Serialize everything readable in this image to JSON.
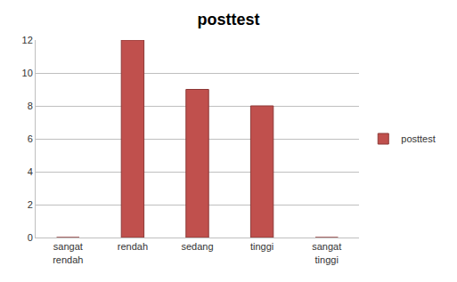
{
  "chart_data": {
    "type": "bar",
    "title": "posttest",
    "categories": [
      "sangat rendah",
      "rendah",
      "sedang",
      "tinggi",
      "sangat tinggi"
    ],
    "series": [
      {
        "name": "posttest",
        "color": "#c0504d",
        "values": [
          0,
          12,
          9,
          8,
          0
        ]
      }
    ],
    "ylim": [
      0,
      12
    ],
    "yticks": [
      0,
      2,
      4,
      6,
      8,
      10,
      12
    ],
    "grid": true,
    "legend": "right"
  }
}
